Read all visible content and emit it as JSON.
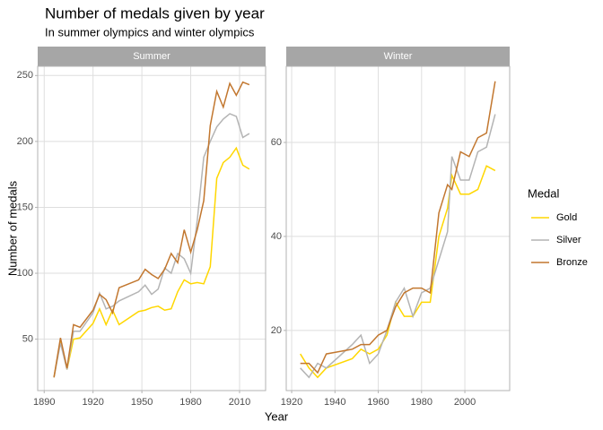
{
  "title": "Number of medals given by year",
  "subtitle": "In summer olympics and winter olympics",
  "xlabel": "Year",
  "ylabel": "Number of medals",
  "legend_title": "Medal",
  "chart_data": [
    {
      "type": "line",
      "title": "Summer",
      "x": [
        1896,
        1900,
        1904,
        1908,
        1912,
        1920,
        1924,
        1928,
        1932,
        1936,
        1948,
        1952,
        1956,
        1960,
        1964,
        1968,
        1972,
        1976,
        1980,
        1984,
        1988,
        1992,
        1996,
        2000,
        2004,
        2008,
        2012,
        2016
      ],
      "series": [
        {
          "name": "Gold",
          "color": "#FFD700",
          "values": [
            21,
            49,
            27,
            50,
            51,
            62,
            73,
            61,
            72,
            61,
            71,
            72,
            74,
            75,
            72,
            73,
            86,
            95,
            92,
            93,
            92,
            105,
            172,
            184,
            188,
            195,
            182,
            179
          ]
        },
        {
          "name": "Silver",
          "color": "#B4B4B4",
          "values": [
            21,
            47,
            27,
            56,
            56,
            70,
            85,
            73,
            75,
            79,
            86,
            91,
            84,
            88,
            104,
            100,
            115,
            111,
            100,
            140,
            188,
            200,
            211,
            217,
            221,
            219,
            203,
            206
          ]
        },
        {
          "name": "Bronze",
          "color": "#C2772F",
          "values": [
            21,
            51,
            28,
            61,
            59,
            72,
            84,
            80,
            70,
            89,
            95,
            103,
            99,
            96,
            103,
            115,
            108,
            133,
            116,
            133,
            155,
            212,
            238,
            226,
            244,
            235,
            245,
            243
          ]
        }
      ],
      "xlim": [
        1886,
        2026
      ],
      "ylim": [
        11,
        257
      ],
      "xticks": [
        1890,
        1920,
        1950,
        1980,
        2010
      ],
      "yticks": [
        50,
        100,
        150,
        200,
        250
      ],
      "grid": true
    },
    {
      "type": "line",
      "title": "Winter",
      "x": [
        1924,
        1928,
        1932,
        1936,
        1948,
        1952,
        1956,
        1960,
        1964,
        1968,
        1972,
        1976,
        1980,
        1984,
        1988,
        1992,
        1994,
        1998,
        2002,
        2006,
        2010,
        2014
      ],
      "series": [
        {
          "name": "Gold",
          "color": "#FFD700",
          "values": [
            15,
            12,
            10,
            12,
            14,
            16,
            15,
            16,
            19,
            26,
            23,
            23,
            26,
            26,
            40,
            46,
            53,
            49,
            49,
            50,
            55,
            54
          ]
        },
        {
          "name": "Silver",
          "color": "#B4B4B4",
          "values": [
            12,
            10,
            13,
            12,
            17,
            19,
            13,
            15,
            20,
            26,
            29,
            23,
            28,
            29,
            35,
            41,
            57,
            52,
            52,
            58,
            59,
            66
          ]
        },
        {
          "name": "Bronze",
          "color": "#C2772F",
          "values": [
            13,
            13,
            11,
            15,
            16,
            17,
            17,
            19,
            20,
            25,
            28,
            29,
            29,
            28,
            45,
            51,
            50,
            58,
            57,
            61,
            62,
            73
          ]
        }
      ],
      "xlim": [
        1917.5,
        2020.7
      ],
      "ylim": [
        7.2,
        76.2
      ],
      "xticks": [
        1920,
        1940,
        1960,
        1980,
        2000
      ],
      "yticks": [
        20,
        40,
        60
      ],
      "grid": true
    }
  ]
}
